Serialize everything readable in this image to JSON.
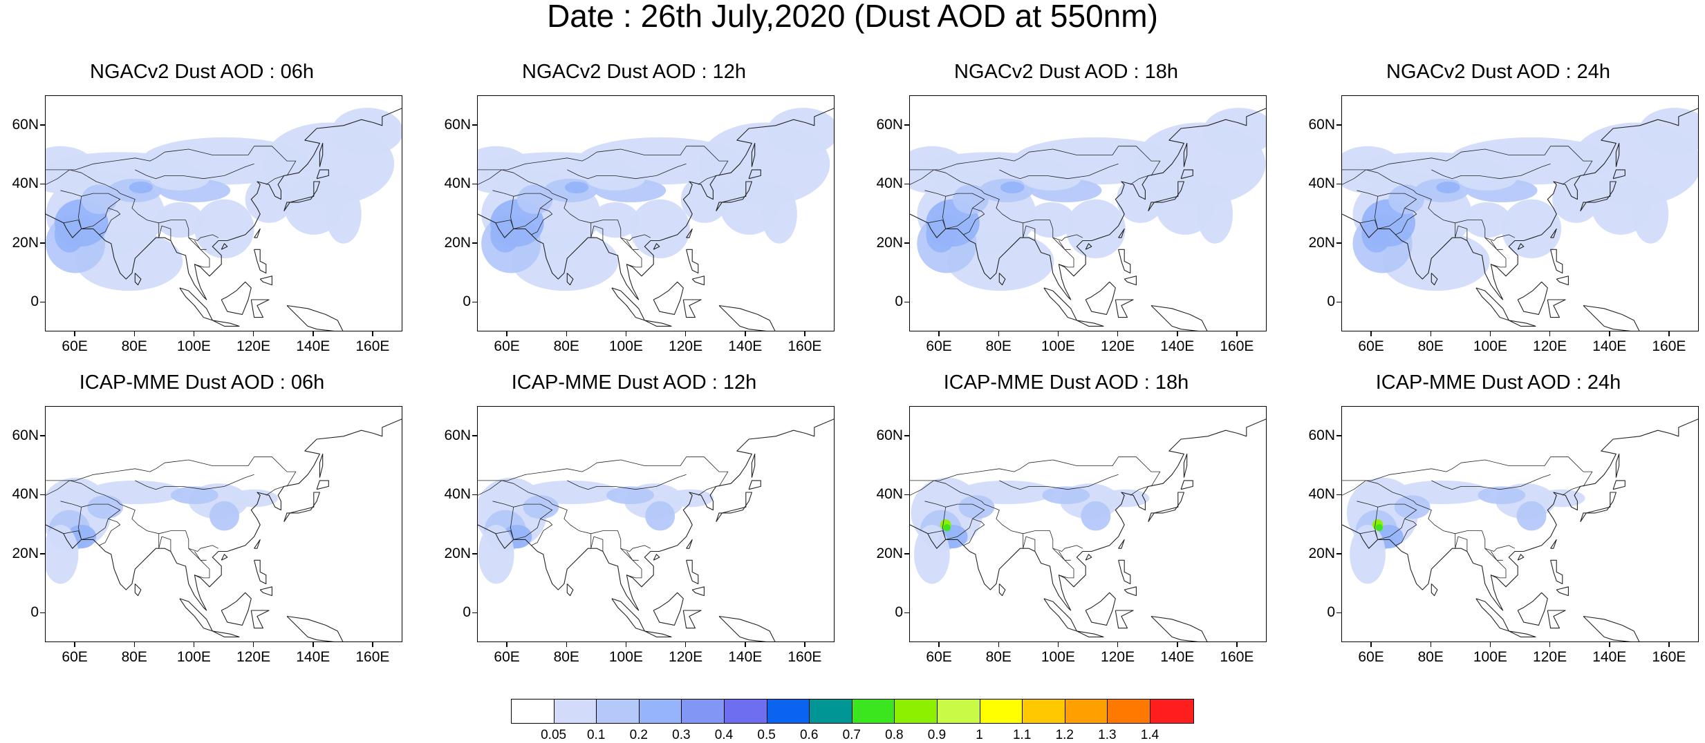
{
  "title": "Date : 26th July,2020 (Dust AOD at 550nm)",
  "panels": [
    {
      "title": "NGACv2 Dust AOD : 06h",
      "model": "NGACv2",
      "hour": "06h"
    },
    {
      "title": "NGACv2 Dust AOD : 12h",
      "model": "NGACv2",
      "hour": "12h"
    },
    {
      "title": "NGACv2 Dust AOD : 18h",
      "model": "NGACv2",
      "hour": "18h"
    },
    {
      "title": "NGACv2 Dust AOD : 24h",
      "model": "NGACv2",
      "hour": "24h"
    },
    {
      "title": "ICAP-MME Dust AOD : 06h",
      "model": "ICAP-MME",
      "hour": "06h"
    },
    {
      "title": "ICAP-MME Dust AOD : 12h",
      "model": "ICAP-MME",
      "hour": "12h"
    },
    {
      "title": "ICAP-MME Dust AOD : 18h",
      "model": "ICAP-MME",
      "hour": "18h"
    },
    {
      "title": "ICAP-MME Dust AOD : 24h",
      "model": "ICAP-MME",
      "hour": "24h"
    }
  ],
  "map": {
    "lon_range": [
      50,
      170
    ],
    "lat_range": [
      -10,
      70
    ],
    "x_ticks": [
      "60E",
      "80E",
      "100E",
      "120E",
      "140E",
      "160E"
    ],
    "x_tick_values": [
      60,
      80,
      100,
      120,
      140,
      160
    ],
    "y_ticks": [
      "60N",
      "40N",
      "20N",
      "0"
    ],
    "y_tick_values": [
      60,
      40,
      20,
      0
    ]
  },
  "colorbar": {
    "labels": [
      "0.05",
      "0.1",
      "0.2",
      "0.3",
      "0.4",
      "0.5",
      "0.6",
      "0.7",
      "0.8",
      "0.9",
      "1",
      "1.1",
      "1.2",
      "1.3",
      "1.4"
    ],
    "colors": [
      "#ffffff",
      "#d2dcfa",
      "#b4c8fa",
      "#96b4fa",
      "#8296f5",
      "#6e6ef0",
      "#0a64f0",
      "#009696",
      "#3ce61e",
      "#8cf000",
      "#c8fa46",
      "#ffff00",
      "#ffc800",
      "#ffa000",
      "#ff7800",
      "#ff1e1e"
    ]
  }
}
